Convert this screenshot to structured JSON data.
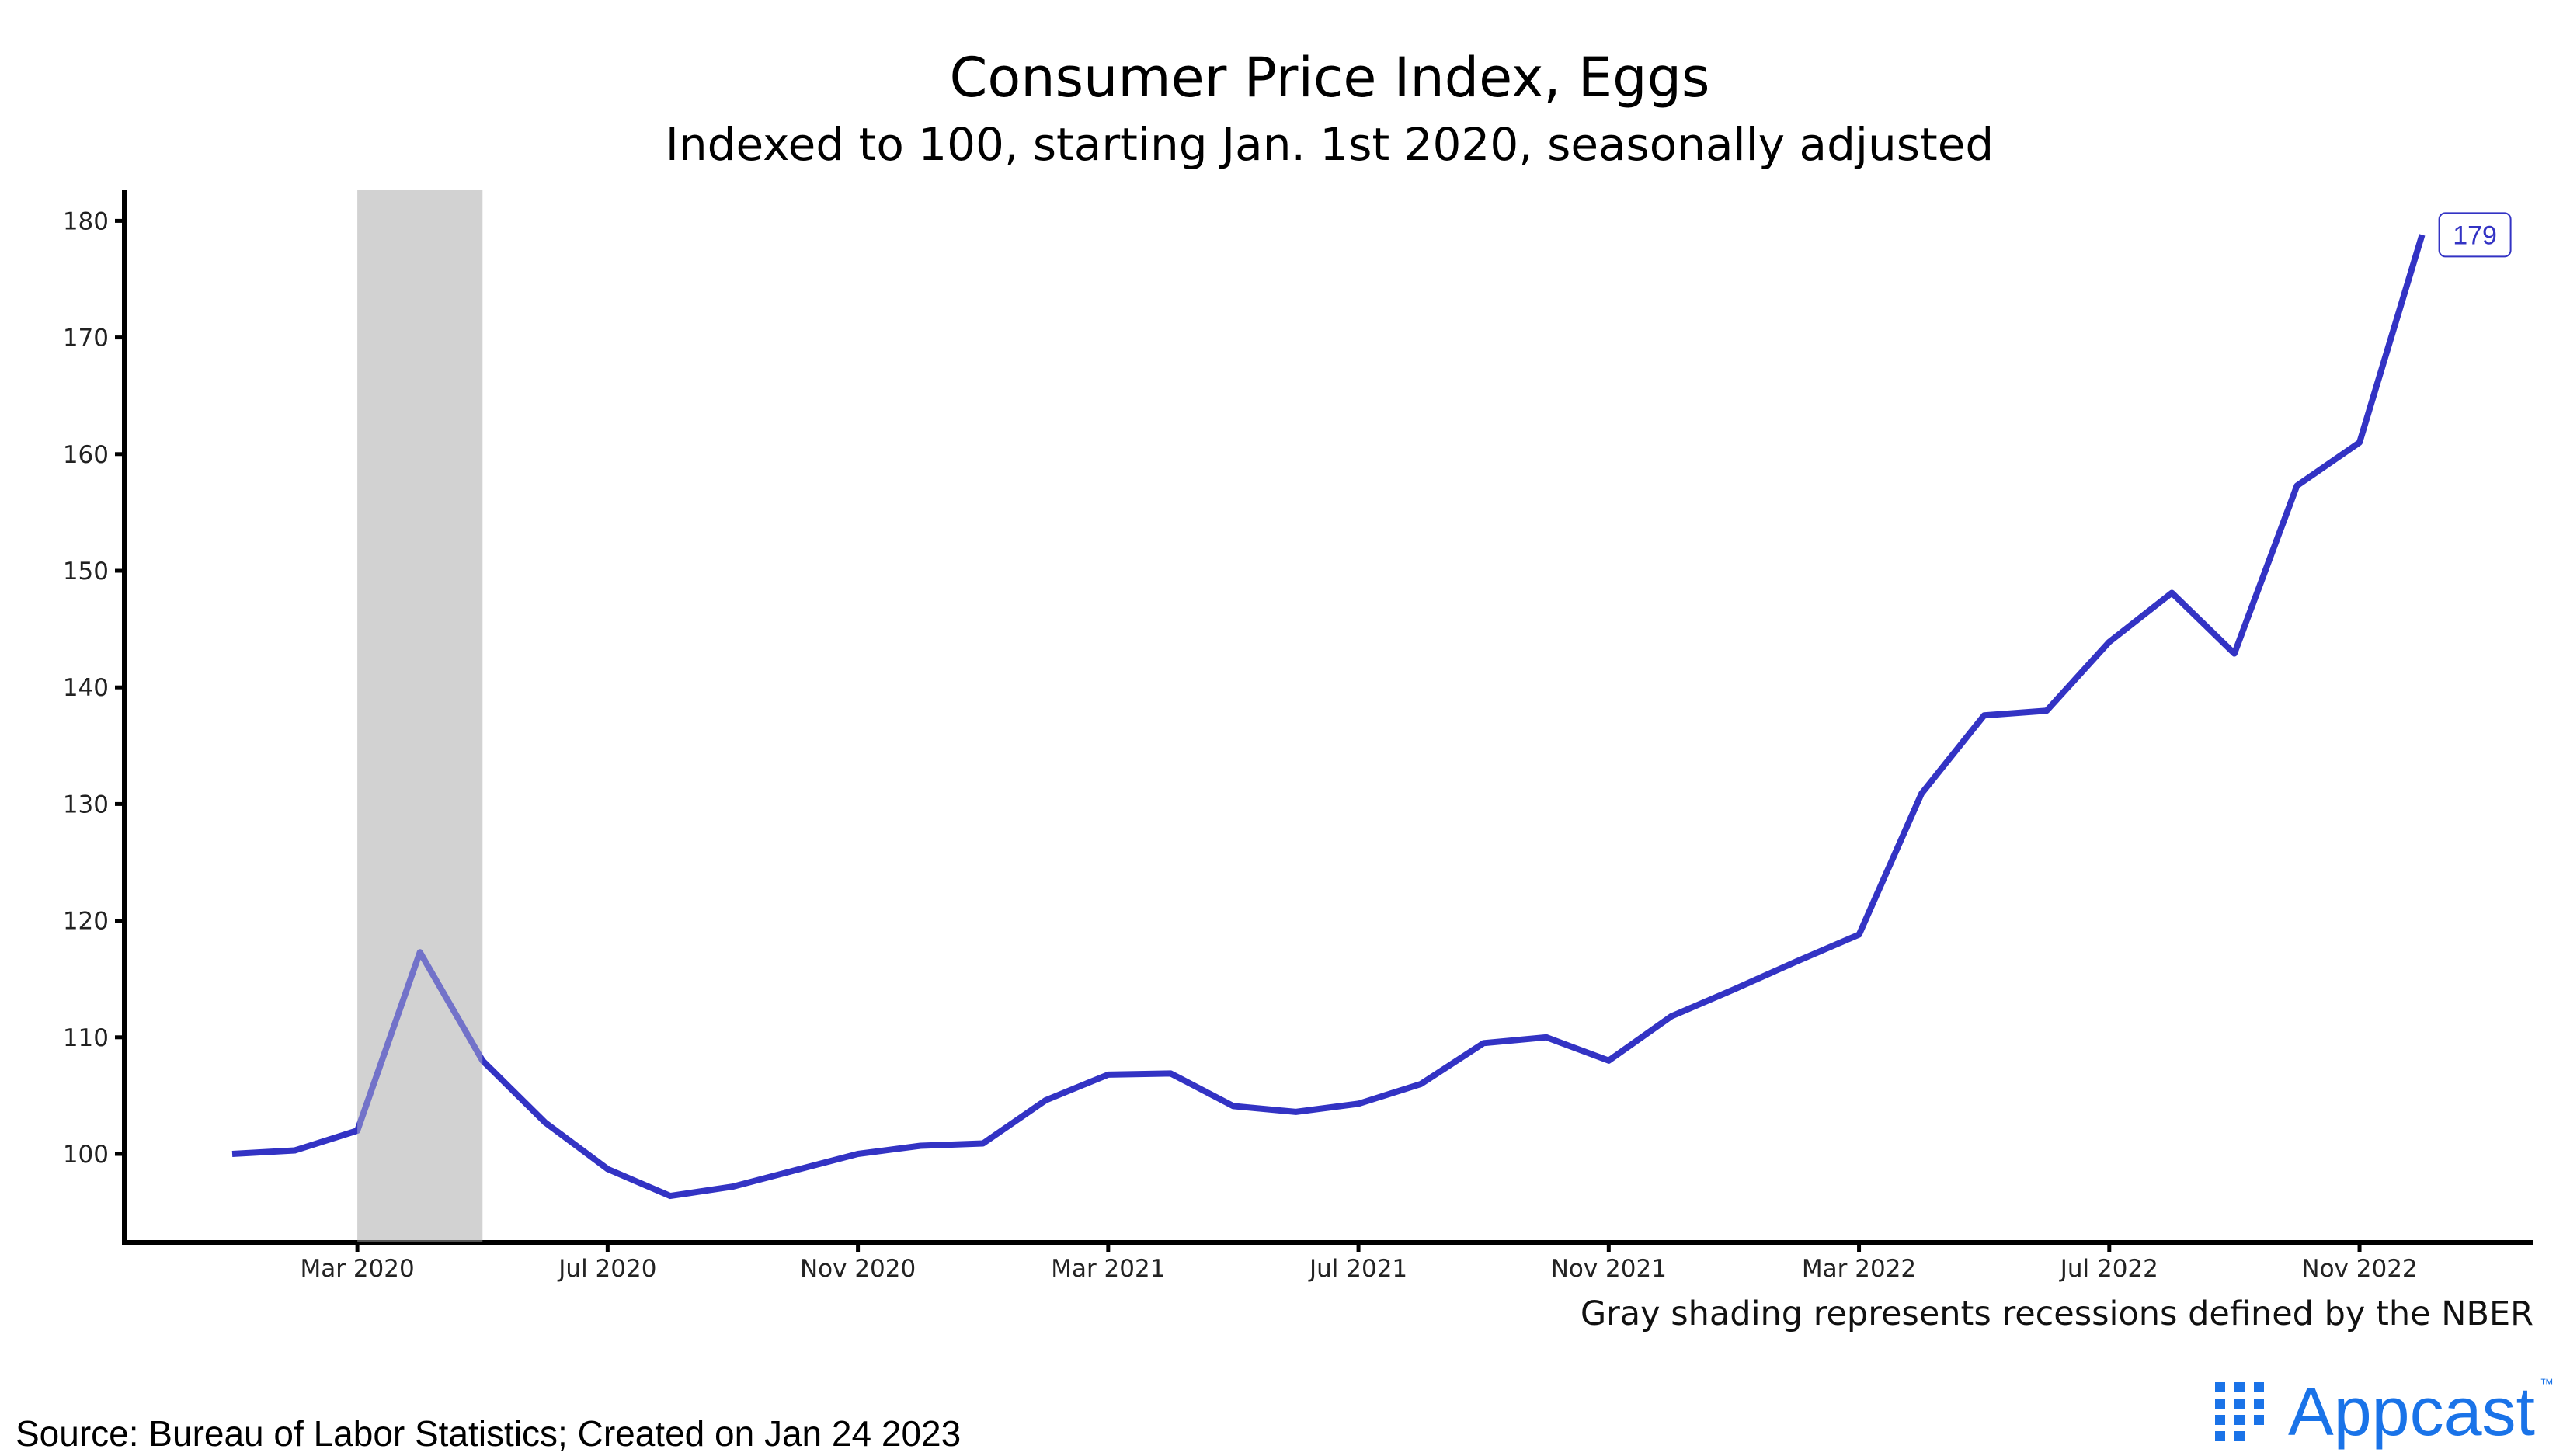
{
  "chart_data": {
    "type": "line",
    "title": "Consumer Price Index, Eggs",
    "subtitle": "Indexed to 100, starting Jan. 1st 2020, seasonally adjusted",
    "xlabel": "",
    "ylabel": "",
    "ylim": [
      92.5,
      183
    ],
    "yticks": [
      100,
      110,
      120,
      130,
      140,
      150,
      160,
      170,
      180
    ],
    "xtick_labels": [
      "Mar 2020",
      "Jul 2020",
      "Nov 2020",
      "Mar 2021",
      "Jul 2021",
      "Nov 2021",
      "Mar 2022",
      "Jul 2022",
      "Nov 2022"
    ],
    "xtick_month_index": [
      2,
      6,
      10,
      14,
      18,
      22,
      26,
      30,
      34
    ],
    "x": [
      "Jan 2020",
      "Feb 2020",
      "Mar 2020",
      "Apr 2020",
      "May 2020",
      "Jun 2020",
      "Jul 2020",
      "Aug 2020",
      "Sep 2020",
      "Oct 2020",
      "Nov 2020",
      "Dec 2020",
      "Jan 2021",
      "Feb 2021",
      "Mar 2021",
      "Apr 2021",
      "May 2021",
      "Jun 2021",
      "Jul 2021",
      "Aug 2021",
      "Sep 2021",
      "Oct 2021",
      "Nov 2021",
      "Dec 2021",
      "Jan 2022",
      "Feb 2022",
      "Mar 2022",
      "Apr 2022",
      "May 2022",
      "Jun 2022",
      "Jul 2022",
      "Aug 2022",
      "Sep 2022",
      "Oct 2022",
      "Nov 2022",
      "Dec 2022"
    ],
    "series": [
      {
        "name": "CPI Eggs",
        "color": "#3333c4",
        "values": [
          100,
          100.3,
          102,
          117.3,
          108,
          102.7,
          98.7,
          96.4,
          97.2,
          98.6,
          100,
          100.7,
          100.9,
          104.6,
          106.8,
          106.9,
          104.1,
          103.6,
          104.3,
          106,
          109.5,
          110,
          108,
          111.8,
          114.1,
          116.5,
          118.8,
          130.9,
          137.6,
          138,
          143.9,
          148.1,
          142.9,
          157.3,
          161,
          178.8
        ]
      }
    ],
    "end_label": "179",
    "recessions": [
      {
        "start_month_index": 2,
        "end_month_index": 4,
        "color": "#d3d3d3"
      }
    ],
    "grid": false,
    "legend": "none",
    "note": "Gray shading represents recessions defined by the NBER"
  },
  "footer": {
    "source": "Source: Bureau of Labor Statistics; Created on Jan 24 2023",
    "logo_text": "Appcast",
    "logo_tm": "™",
    "logo_color": "#1a73e8"
  }
}
